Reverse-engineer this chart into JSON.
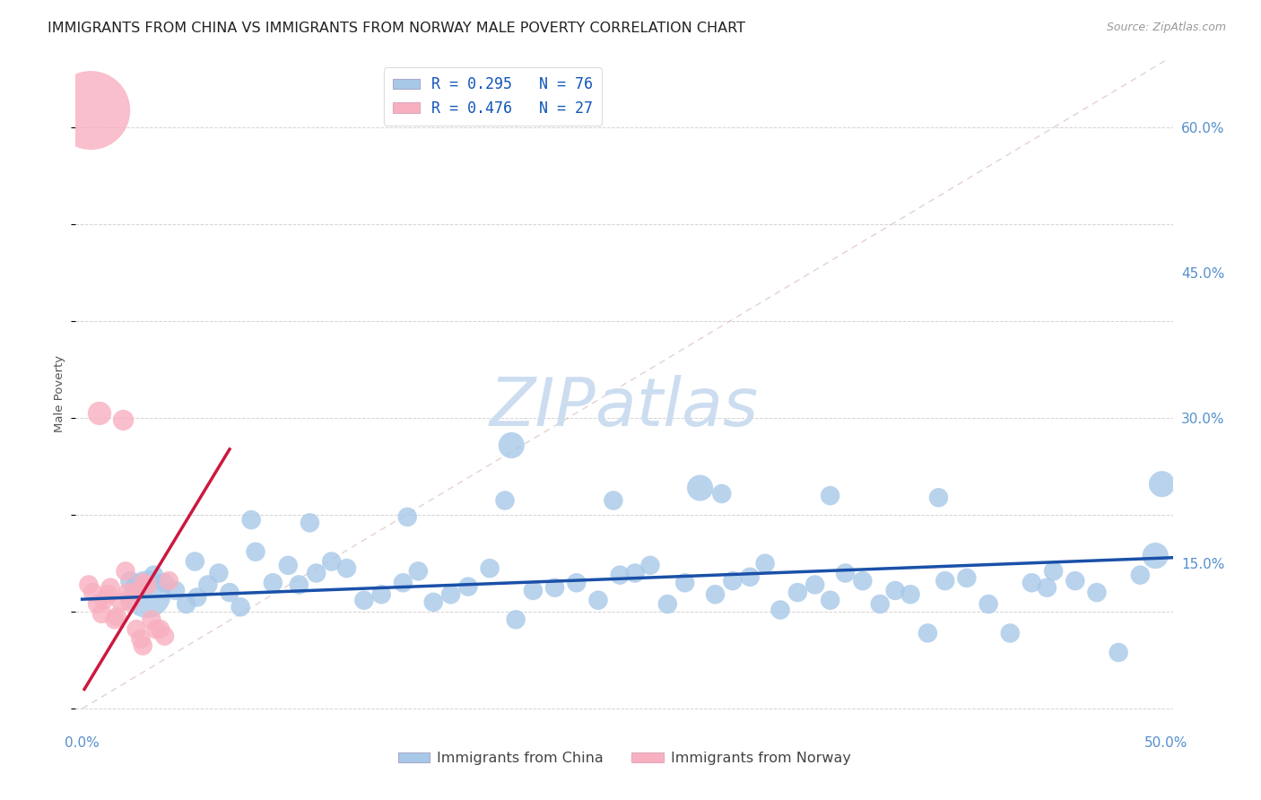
{
  "title": "IMMIGRANTS FROM CHINA VS IMMIGRANTS FROM NORWAY MALE POVERTY CORRELATION CHART",
  "source": "Source: ZipAtlas.com",
  "ylabel": "Male Poverty",
  "xlim": [
    -0.003,
    0.503
  ],
  "ylim": [
    -0.02,
    0.67
  ],
  "right_yticks": [
    0.15,
    0.3,
    0.45,
    0.6
  ],
  "right_ytick_labels": [
    "15.0%",
    "30.0%",
    "45.0%",
    "60.0%"
  ],
  "xtick_vals": [
    0.0,
    0.1,
    0.2,
    0.3,
    0.4,
    0.5
  ],
  "xtick_labels": [
    "0.0%",
    "",
    "",
    "",
    "",
    "50.0%"
  ],
  "legend_label1": "R = 0.295   N = 76",
  "legend_label2": "R = 0.476   N = 27",
  "legend_entry1": "Immigrants from China",
  "legend_entry2": "Immigrants from Norway",
  "china_color": "#a8c8e8",
  "norway_color": "#f8b0c0",
  "china_line_color": "#1a50a8",
  "norway_line_color": "#cc1840",
  "ref_line_color": "#d8b8b8",
  "watermark_color": "#ccddf0",
  "background_color": "#ffffff",
  "title_fontsize": 11.5,
  "tick_color": "#5590cc",
  "tick_fontsize": 11,
  "china_x": [
    0.022,
    0.026,
    0.03,
    0.033,
    0.038,
    0.043,
    0.048,
    0.053,
    0.058,
    0.063,
    0.068,
    0.073,
    0.08,
    0.088,
    0.095,
    0.1,
    0.108,
    0.115,
    0.122,
    0.13,
    0.138,
    0.148,
    0.155,
    0.162,
    0.17,
    0.178,
    0.188,
    0.198,
    0.208,
    0.218,
    0.228,
    0.238,
    0.248,
    0.255,
    0.262,
    0.27,
    0.278,
    0.285,
    0.292,
    0.3,
    0.308,
    0.315,
    0.322,
    0.33,
    0.338,
    0.345,
    0.352,
    0.36,
    0.368,
    0.375,
    0.382,
    0.39,
    0.398,
    0.408,
    0.418,
    0.428,
    0.438,
    0.448,
    0.458,
    0.468,
    0.478,
    0.488,
    0.498,
    0.025,
    0.052,
    0.078,
    0.105,
    0.15,
    0.195,
    0.245,
    0.295,
    0.345,
    0.395,
    0.445,
    0.495,
    0.2
  ],
  "china_y": [
    0.132,
    0.124,
    0.118,
    0.138,
    0.13,
    0.122,
    0.108,
    0.115,
    0.128,
    0.14,
    0.12,
    0.105,
    0.162,
    0.13,
    0.148,
    0.128,
    0.14,
    0.152,
    0.145,
    0.112,
    0.118,
    0.13,
    0.142,
    0.11,
    0.118,
    0.126,
    0.145,
    0.272,
    0.122,
    0.125,
    0.13,
    0.112,
    0.138,
    0.14,
    0.148,
    0.108,
    0.13,
    0.228,
    0.118,
    0.132,
    0.136,
    0.15,
    0.102,
    0.12,
    0.128,
    0.112,
    0.14,
    0.132,
    0.108,
    0.122,
    0.118,
    0.078,
    0.132,
    0.135,
    0.108,
    0.078,
    0.13,
    0.142,
    0.132,
    0.12,
    0.058,
    0.138,
    0.232,
    0.128,
    0.152,
    0.195,
    0.192,
    0.198,
    0.215,
    0.215,
    0.222,
    0.22,
    0.218,
    0.125,
    0.158,
    0.092
  ],
  "china_size": [
    30,
    30,
    180,
    30,
    30,
    30,
    30,
    30,
    30,
    30,
    30,
    30,
    30,
    30,
    30,
    30,
    30,
    30,
    30,
    30,
    30,
    30,
    30,
    30,
    30,
    30,
    30,
    55,
    30,
    30,
    30,
    30,
    30,
    30,
    30,
    30,
    30,
    55,
    30,
    30,
    30,
    30,
    30,
    30,
    30,
    30,
    30,
    30,
    30,
    30,
    30,
    30,
    30,
    30,
    30,
    30,
    30,
    30,
    30,
    30,
    30,
    30,
    55,
    30,
    30,
    30,
    30,
    30,
    30,
    30,
    30,
    30,
    30,
    30,
    55,
    30
  ],
  "norway_x": [
    0.003,
    0.005,
    0.007,
    0.009,
    0.01,
    0.012,
    0.013,
    0.015,
    0.016,
    0.018,
    0.019,
    0.021,
    0.022,
    0.024,
    0.025,
    0.027,
    0.028,
    0.03,
    0.032,
    0.034,
    0.036,
    0.038,
    0.04,
    0.004,
    0.008,
    0.02,
    0.028
  ],
  "norway_y": [
    0.128,
    0.12,
    0.108,
    0.098,
    0.112,
    0.118,
    0.125,
    0.092,
    0.095,
    0.11,
    0.298,
    0.12,
    0.11,
    0.12,
    0.082,
    0.072,
    0.065,
    0.128,
    0.092,
    0.082,
    0.082,
    0.075,
    0.132,
    0.618,
    0.305,
    0.142,
    0.13
  ],
  "norway_size": [
    30,
    30,
    30,
    30,
    30,
    30,
    30,
    30,
    30,
    30,
    35,
    30,
    30,
    30,
    30,
    30,
    30,
    30,
    30,
    30,
    30,
    30,
    30,
    500,
    45,
    30,
    30
  ],
  "china_trend_x": [
    0.0,
    0.503
  ],
  "china_trend_y": [
    0.113,
    0.156
  ],
  "norway_trend_x": [
    0.001,
    0.068
  ],
  "norway_trend_y": [
    0.02,
    0.268
  ],
  "ref_line_x": [
    0.0,
    0.5
  ],
  "ref_line_y": [
    0.0,
    0.67
  ]
}
